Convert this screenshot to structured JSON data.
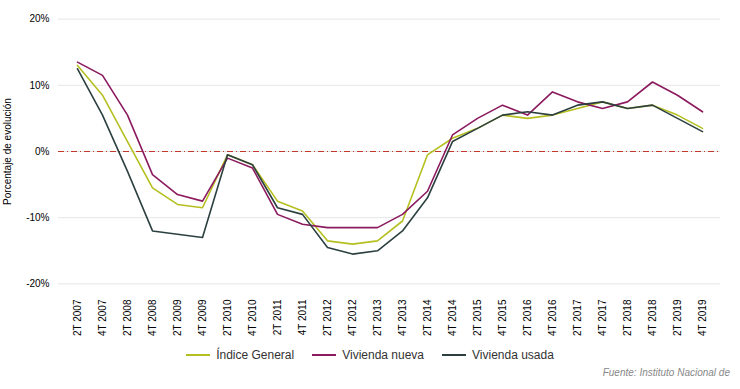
{
  "chart_data": {
    "type": "line",
    "ylabel": "Porcentaje de evolución",
    "source": "Fuente: Instituto Nacional de",
    "categories": [
      "2T 2007",
      "4T 2007",
      "2T 2008",
      "4T 2008",
      "2T 2009",
      "4T 2009",
      "2T 2010",
      "4T 2010",
      "2T 2011",
      "4T 2011",
      "2T 2012",
      "4T 2012",
      "2T 2013",
      "4T 2013",
      "2T 2014",
      "4T 2014",
      "2T 2015",
      "4T 2015",
      "2T 2016",
      "4T 2016",
      "2T 2017",
      "4T 2017",
      "2T 2018",
      "4T 2018",
      "2T 2019",
      "4T 2019"
    ],
    "series": [
      {
        "name": "Índice General",
        "color": "#b5c020",
        "values": [
          13.0,
          8.5,
          1.5,
          -5.5,
          -8.0,
          -8.5,
          -0.5,
          -2.0,
          -7.5,
          -9.0,
          -13.5,
          -14.0,
          -13.5,
          -10.5,
          -0.5,
          2.0,
          3.5,
          5.5,
          5.0,
          5.5,
          6.5,
          7.5,
          6.5,
          7.0,
          5.5,
          3.5
        ]
      },
      {
        "name": "Vivienda nueva",
        "color": "#8b1a5e",
        "values": [
          13.5,
          11.5,
          5.5,
          -3.5,
          -6.5,
          -7.5,
          -1.0,
          -2.5,
          -9.5,
          -11.0,
          -11.5,
          -11.5,
          -11.5,
          -9.5,
          -6.0,
          2.5,
          5.0,
          7.0,
          5.5,
          9.0,
          7.5,
          6.5,
          7.5,
          10.5,
          8.5,
          6.0
        ]
      },
      {
        "name": "Vivienda usada",
        "color": "#2d4040",
        "values": [
          12.5,
          5.5,
          -3.0,
          -12.0,
          -12.5,
          -13.0,
          -0.5,
          -2.0,
          -8.5,
          -9.5,
          -14.5,
          -15.5,
          -15.0,
          -12.0,
          -7.0,
          1.5,
          3.5,
          5.5,
          6.0,
          5.5,
          7.0,
          7.5,
          6.5,
          7.0,
          5.0,
          3.0
        ]
      }
    ],
    "reference_lines": [
      {
        "value": 0,
        "color": "#c0392b",
        "line_style": "dashdot"
      }
    ],
    "ylim": [
      -21,
      21
    ],
    "yticks": [
      {
        "value": -20,
        "label": "-20%"
      },
      {
        "value": -10,
        "label": "-10%"
      },
      {
        "value": 0,
        "label": "0%"
      },
      {
        "value": 10,
        "label": "10%"
      },
      {
        "value": 20,
        "label": "20%"
      }
    ],
    "grid": true,
    "legend": "bottom"
  }
}
